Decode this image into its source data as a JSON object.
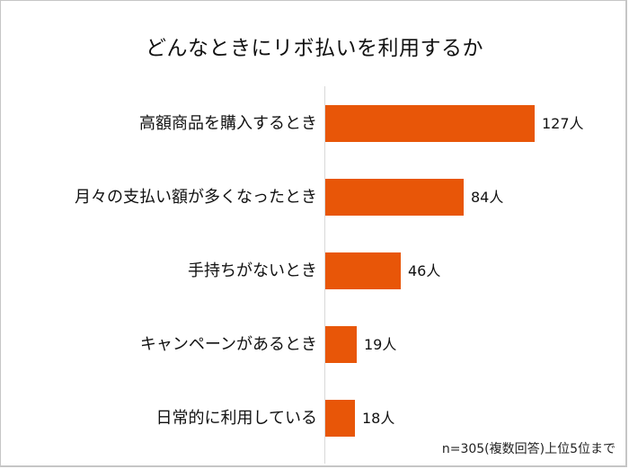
{
  "chart_data": {
    "type": "bar",
    "orientation": "horizontal",
    "title": "どんなときにリボ払いを利用するか",
    "categories": [
      "高額商品を購入するとき",
      "月々の支払い額が多くなったとき",
      "手持ちがないとき",
      "キャンペーンがあるとき",
      "日常的に利用している"
    ],
    "values": [
      127,
      84,
      46,
      19,
      18
    ],
    "value_labels": [
      "127人",
      "84人",
      "46人",
      "19人",
      "18人"
    ],
    "unit": "人",
    "xlabel": "",
    "ylabel": "",
    "grid": false,
    "legend": "none",
    "bar_color": "#e85608",
    "note": "n=305(複数回答)上位5位まで"
  },
  "title": "どんなときにリボ払いを利用するか",
  "rows": [
    {
      "label": "高額商品を購入するとき",
      "value": 127,
      "value_label": "127人"
    },
    {
      "label": "月々の支払い額が多くなったとき",
      "value": 84,
      "value_label": "84人"
    },
    {
      "label": "手持ちがないとき",
      "value": 46,
      "value_label": "46人"
    },
    {
      "label": "キャンペーンがあるとき",
      "value": 19,
      "value_label": "19人"
    },
    {
      "label": "日常的に利用している",
      "value": 18,
      "value_label": "18人"
    }
  ],
  "note": "n=305(複数回答)上位5位まで"
}
